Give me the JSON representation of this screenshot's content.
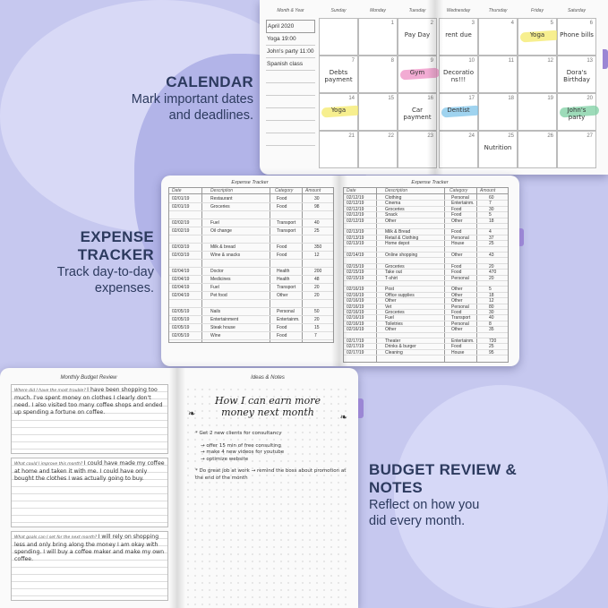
{
  "colors": {
    "background": "#c6c8ef",
    "heading": "#2c3a5e",
    "tab": "#9b86d4",
    "yellow": "#f4ea6a",
    "pink": "#ee8fc4",
    "blue": "#7fc4ea",
    "green": "#7ccfa2"
  },
  "features": [
    {
      "title": "CALENDAR",
      "desc": "Mark important dates and deadlines."
    },
    {
      "title": "EXPENSE TRACKER",
      "desc": "Track day-to-day expenses."
    },
    {
      "title": "BUDGET REVIEW & NOTES",
      "desc": "Reflect on how you did every month."
    }
  ],
  "calendar": {
    "headers": [
      "Month & Year",
      "Sunday",
      "Monday",
      "Tuesday",
      "Wednesday",
      "Thursday",
      "Friday",
      "Saturday"
    ],
    "month_notes": [
      "April 2020",
      "Yoga 19:00",
      "John's party 11:00",
      "Spanish class"
    ],
    "weeks": [
      [
        {
          "n": ""
        },
        {
          "n": "1"
        },
        {
          "n": "2",
          "t": "Pay Day"
        },
        {
          "n": "3",
          "t": "rent due"
        },
        {
          "n": "4"
        },
        {
          "n": "5",
          "t": "Yoga",
          "hl": "yellow"
        },
        {
          "n": "6",
          "t": "Phone bills"
        }
      ],
      [
        {
          "n": "7",
          "t": "Debts payment"
        },
        {
          "n": "8"
        },
        {
          "n": "9",
          "t": "Gym",
          "hl": "pink"
        },
        {
          "n": "10",
          "t": "Decorations!!!"
        },
        {
          "n": "11"
        },
        {
          "n": "12"
        },
        {
          "n": "13",
          "t": "Dora's Birthday"
        }
      ],
      [
        {
          "n": "14",
          "t": "Yoga",
          "hl": "yellow"
        },
        {
          "n": "15"
        },
        {
          "n": "16",
          "t": "Car payment"
        },
        {
          "n": "17",
          "t": "Dentist",
          "hl": "blue"
        },
        {
          "n": "18"
        },
        {
          "n": "19"
        },
        {
          "n": "20",
          "t": "John's party",
          "hl": "green"
        }
      ],
      [
        {
          "n": "21"
        },
        {
          "n": "22"
        },
        {
          "n": "23"
        },
        {
          "n": "24"
        },
        {
          "n": "25",
          "t": "Nutrition"
        },
        {
          "n": "26"
        },
        {
          "n": "27"
        }
      ]
    ]
  },
  "expense": {
    "title": "Expense Tracker",
    "columns": [
      "Date",
      "Description",
      "Category",
      "Amount"
    ],
    "left_rows": [
      [
        "02/01/19",
        "Restaurant",
        "Food",
        "30"
      ],
      [
        "02/01/19",
        "Groceries",
        "Food",
        "98"
      ],
      null,
      [
        "02/02/19",
        "Fuel",
        "Transport",
        "40"
      ],
      [
        "02/02/19",
        "Oil change",
        "Transport",
        "25"
      ],
      null,
      [
        "02/03/19",
        "Milk & bread",
        "Food",
        "350"
      ],
      [
        "02/03/19",
        "Wine & snacks",
        "Food",
        "12"
      ],
      null,
      [
        "02/04/19",
        "Doctor",
        "Health",
        "200"
      ],
      [
        "02/04/19",
        "Medicines",
        "Health",
        "48"
      ],
      [
        "02/04/19",
        "Fuel",
        "Transport",
        "20"
      ],
      [
        "02/04/19",
        "Pet food",
        "Other",
        "20"
      ],
      null,
      [
        "02/05/19",
        "Nails",
        "Personal",
        "50"
      ],
      [
        "02/05/19",
        "Entertainment",
        "Entertainm.",
        "20"
      ],
      [
        "02/05/19",
        "Steak house",
        "Food",
        "15"
      ],
      [
        "02/05/19",
        "Wine",
        "Food",
        "7"
      ]
    ],
    "right_rows": [
      [
        "02/12/19",
        "Clothing",
        "Personal",
        "60"
      ],
      [
        "02/12/19",
        "Cinema",
        "Entertainm.",
        "7"
      ],
      [
        "02/12/19",
        "Groceries",
        "Food",
        "30"
      ],
      [
        "02/12/19",
        "Snack",
        "Food",
        "5"
      ],
      [
        "02/12/19",
        "Other",
        "Other",
        "18"
      ],
      null,
      [
        "02/13/19",
        "Milk & Bread",
        "Food",
        "4"
      ],
      [
        "02/13/19",
        "Retail & Clothing",
        "Personal",
        "37"
      ],
      [
        "02/13/19",
        "Home depot",
        "House",
        "25"
      ],
      null,
      [
        "02/14/19",
        "Online shopping",
        "Other",
        "43"
      ],
      null,
      [
        "02/15/19",
        "Groceries",
        "Food",
        "20"
      ],
      [
        "02/15/19",
        "Take out",
        "Food",
        "470"
      ],
      [
        "02/15/19",
        "T-shirt",
        "Personal",
        "20"
      ],
      null,
      [
        "02/16/19",
        "Post",
        "Other",
        "5"
      ],
      [
        "02/16/19",
        "Office supplies",
        "Other",
        "18"
      ],
      [
        "02/16/19",
        "Other",
        "Other",
        "12"
      ],
      [
        "02/16/19",
        "Vet",
        "Personal",
        "80"
      ],
      [
        "02/16/19",
        "Groceries",
        "Food",
        "30"
      ],
      [
        "02/16/19",
        "Fuel",
        "Transport",
        "40"
      ],
      [
        "02/16/19",
        "Toiletries",
        "Personal",
        "8"
      ],
      [
        "02/16/19",
        "Other",
        "Other",
        "35"
      ],
      null,
      [
        "02/17/19",
        "Theater",
        "Entertainm.",
        "720"
      ],
      [
        "02/17/19",
        "Drinks & burger",
        "Food",
        "25"
      ],
      [
        "02/17/19",
        "Cleaning",
        "House",
        "95"
      ]
    ]
  },
  "budget": {
    "title": "Monthly Budget Review",
    "sections": [
      {
        "q": "Where did I have the most trouble?",
        "a": "I have been shopping too much. I've spent money on clothes I clearly don't need. I also visited too many coffee shops and ended up spending a fortune on coffee."
      },
      {
        "q": "What could I improve this month?",
        "a": "I could have made my coffee at home and taken it with me. I could have only bought the clothes I was actually going to buy."
      },
      {
        "q": "What goals can I set for the next month?",
        "a": "I will rely on shopping less and only bring along the money I am okay with spending. I will buy a coffee maker and make my own coffee."
      }
    ]
  },
  "notes": {
    "title": "Ideas & Notes",
    "heading": "How I can earn more money next month",
    "items": [
      "* Get 2 new clients for consultancy",
      "→ offer 15 min of free consulting",
      "→ make 4 new videos for youtube",
      "→ optimize website",
      "* Do great job at work → remind the boss about promotion at the end of the month"
    ]
  }
}
